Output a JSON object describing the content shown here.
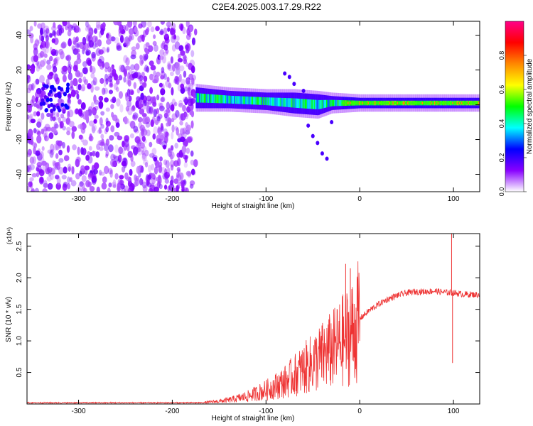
{
  "title": "C2E4.2025.003.17.29.R22",
  "chart_data": [
    {
      "type": "heatmap",
      "title": "C2E4.2025.003.17.29.R22",
      "xlabel": "Height of straight line (km)",
      "ylabel": "Frequency (Hz)",
      "xlim": [
        -355,
        128
      ],
      "ylim": [
        -50,
        48
      ],
      "xticks": [
        -300,
        -200,
        -100,
        0,
        100
      ],
      "yticks": [
        -40,
        -20,
        0,
        20,
        40
      ],
      "colorbar": {
        "label": "Normalized spectral amplitude",
        "range": [
          0.0,
          1.0
        ],
        "ticks": [
          "0.0",
          "0.2",
          "0.4",
          "0.6",
          "0.8"
        ],
        "colors": [
          "#ffffff",
          "#8800ff",
          "#0000ff",
          "#00ffff",
          "#00ff00",
          "#ffff00",
          "#ff8800",
          "#ff0000",
          "#ff0088"
        ]
      },
      "features": {
        "noise_region_x": [
          -355,
          -175
        ],
        "signal_band": [
          {
            "x": -175,
            "center": 4,
            "halfwidth": 6
          },
          {
            "x": -140,
            "center": 3,
            "halfwidth": 5
          },
          {
            "x": -100,
            "center": 2,
            "halfwidth": 5
          },
          {
            "x": -70,
            "center": 1,
            "halfwidth": 6
          },
          {
            "x": -45,
            "center": 0,
            "halfwidth": 6
          },
          {
            "x": -30,
            "center": 1,
            "halfwidth": 4
          },
          {
            "x": 0,
            "center": 1,
            "halfwidth": 3
          },
          {
            "x": 128,
            "center": 1,
            "halfwidth": 3
          }
        ],
        "strongest_x": [
          -20,
          128
        ]
      }
    },
    {
      "type": "line",
      "xlabel": "Height of straight line (km)",
      "ylabel": "SNR (10 * v/v)",
      "y_multiplier": "(x10⁴)",
      "xlim": [
        -355,
        128
      ],
      "ylim": [
        0,
        2.7
      ],
      "xticks": [
        -300,
        -200,
        -100,
        0,
        100
      ],
      "yticks": [
        0.5,
        1.0,
        1.5,
        2.0,
        2.5
      ],
      "ytick_labels": [
        "0.5",
        "1.0",
        "1.5",
        "2.0",
        "2.5"
      ],
      "color": "#ee3333",
      "series": [
        {
          "x": [
            -355,
            -300,
            -250,
            -200,
            -170,
            -160,
            -140,
            -120,
            -100,
            -80,
            -60,
            -40,
            -25,
            -15,
            -10,
            -5,
            0,
            10,
            20,
            30,
            40,
            50,
            60,
            70,
            80,
            90,
            100,
            110,
            128
          ],
          "values": [
            0.02,
            0.02,
            0.02,
            0.02,
            0.02,
            0.03,
            0.06,
            0.12,
            0.22,
            0.35,
            0.55,
            0.75,
            0.9,
            1.05,
            1.1,
            1.2,
            1.35,
            1.48,
            1.58,
            1.66,
            1.72,
            1.76,
            1.78,
            1.78,
            1.79,
            1.77,
            1.76,
            1.74,
            1.73
          ]
        }
      ],
      "spikes": [
        {
          "x": -15,
          "y": 2.22
        },
        {
          "x": -10,
          "y": 2.15
        },
        {
          "x": 98,
          "y": 2.7
        },
        {
          "x": 99,
          "y": 0.65
        }
      ]
    }
  ]
}
